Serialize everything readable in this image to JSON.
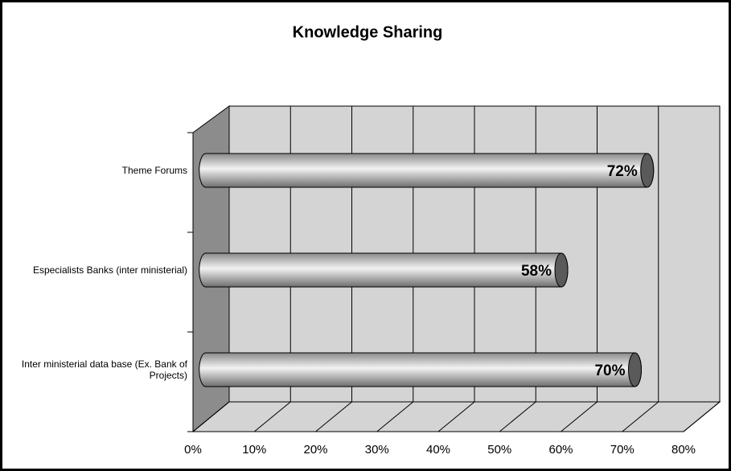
{
  "chart_data": {
    "type": "bar3d",
    "title": "Knowledge Sharing",
    "categories": [
      "Theme Forums",
      "Especialists Banks (inter ministerial)",
      "Inter ministerial data base (Ex. Bank of Projects)"
    ],
    "values": [
      72,
      58,
      70
    ],
    "value_labels": [
      "72%",
      "58%",
      "70%"
    ],
    "color": "#a6a6a6",
    "xlim": [
      0,
      80
    ],
    "xticks": [
      {
        "value": 0,
        "label": "0%"
      },
      {
        "value": 10,
        "label": "10%"
      },
      {
        "value": 20,
        "label": "20%"
      },
      {
        "value": 30,
        "label": "30%"
      },
      {
        "value": 40,
        "label": "40%"
      },
      {
        "value": 50,
        "label": "50%"
      },
      {
        "value": 60,
        "label": "60%"
      },
      {
        "value": 70,
        "label": "70%"
      },
      {
        "value": 80,
        "label": "80%"
      }
    ],
    "grid": true
  }
}
